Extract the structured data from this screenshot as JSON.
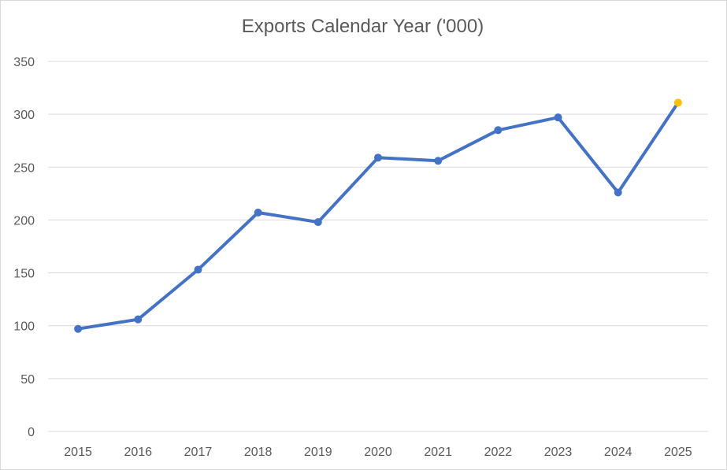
{
  "chart_data": {
    "type": "line",
    "title": "Exports Calendar Year ('000)",
    "xlabel": "",
    "ylabel": "",
    "categories": [
      "2015",
      "2016",
      "2017",
      "2018",
      "2019",
      "2020",
      "2021",
      "2022",
      "2023",
      "2024",
      "2025"
    ],
    "series": [
      {
        "values": [
          97,
          106,
          153,
          207,
          198,
          259,
          256,
          285,
          297,
          226,
          311
        ],
        "color": "#4472c4",
        "last_point_color": "#ffc000"
      }
    ],
    "ylim": [
      0,
      350
    ],
    "yticks": [
      "0",
      "50",
      "100",
      "150",
      "200",
      "250",
      "300",
      "350"
    ],
    "grid": true,
    "legend": "none"
  }
}
